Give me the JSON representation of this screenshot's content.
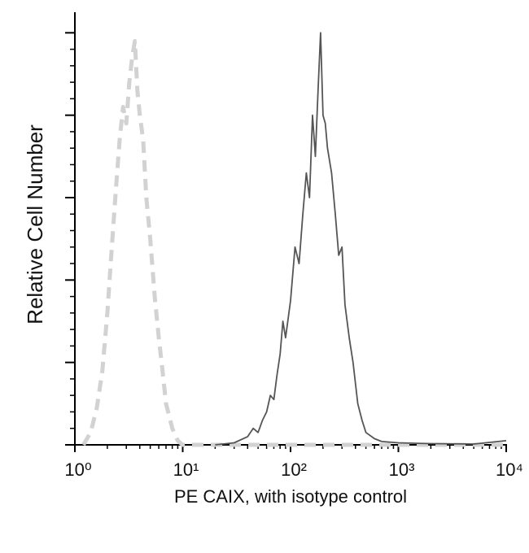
{
  "chart_data": {
    "type": "line",
    "x_label": "PE CAIX, with isotype control",
    "y_label": "Relative Cell Number",
    "xscale": "log",
    "xlim": [
      1,
      10000
    ],
    "xticks": [
      {
        "value": 1,
        "label": "10⁰"
      },
      {
        "value": 10,
        "label": "10¹"
      },
      {
        "value": 100,
        "label": "10²"
      },
      {
        "value": 1000,
        "label": "10³"
      },
      {
        "value": 10000,
        "label": "10⁴"
      }
    ],
    "ylim": [
      0,
      105
    ],
    "yticks": [
      0,
      20,
      40,
      60,
      80,
      100
    ],
    "series": [
      {
        "color": "#d2d2d2",
        "dashed": true,
        "x": [
          1.2,
          1.4,
          1.6,
          1.8,
          2.0,
          2.2,
          2.4,
          2.6,
          2.8,
          3.0,
          3.2,
          3.4,
          3.6,
          3.8,
          4.0,
          4.3,
          4.6,
          5.0,
          5.5,
          6.0,
          6.5,
          7.0,
          8.0,
          9.0,
          10,
          20,
          100,
          1000,
          10000
        ],
        "values": [
          0,
          3,
          9,
          18,
          32,
          48,
          62,
          74,
          82,
          78,
          88,
          94,
          98,
          86,
          80,
          74,
          60,
          50,
          36,
          26,
          18,
          10,
          4,
          1,
          0,
          0,
          0,
          0,
          0
        ]
      },
      {
        "color": "#555555",
        "dashed": false,
        "x": [
          20,
          30,
          40,
          45,
          50,
          55,
          60,
          65,
          70,
          75,
          80,
          85,
          90,
          100,
          110,
          120,
          130,
          140,
          150,
          160,
          170,
          180,
          190,
          200,
          210,
          220,
          240,
          260,
          280,
          300,
          320,
          350,
          380,
          420,
          460,
          500,
          600,
          700,
          1000,
          2000,
          5000,
          10000
        ],
        "values": [
          0,
          0.5,
          2,
          4,
          3,
          6,
          8,
          12,
          11,
          17,
          22,
          30,
          26,
          35,
          48,
          44,
          56,
          66,
          60,
          80,
          70,
          86,
          100,
          80,
          78,
          72,
          66,
          56,
          46,
          48,
          34,
          26,
          20,
          10,
          6,
          3,
          1.5,
          0.8,
          0.5,
          0.3,
          0.2,
          1
        ]
      }
    ]
  }
}
